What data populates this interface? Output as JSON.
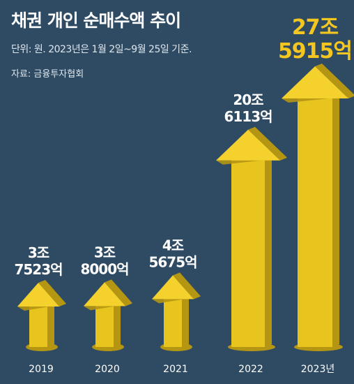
{
  "header": {
    "title": "채권 개인 순매수액 추이",
    "unit_note": "단위: 원. 2023년은 1월 2일~9월 25일 기준.",
    "source": "자료: 금융투자협회"
  },
  "colors": {
    "background": "#2f4b63",
    "arrow_top": "#f4d12c",
    "arrow_front": "#e8c41f",
    "arrow_side": "#b59613",
    "highlight_label": "#f4c620",
    "label": "#ffffff"
  },
  "chart_data": {
    "type": "bar",
    "title": "채권 개인 순매수액 추이",
    "unit": "원",
    "categories": [
      "2019",
      "2020",
      "2021",
      "2022",
      "2023년"
    ],
    "values": [
      37523,
      38000,
      45675,
      206113,
      275915
    ],
    "value_unit": "억원",
    "data_labels": [
      [
        "3조",
        "7523억"
      ],
      [
        "3조",
        "8000억"
      ],
      [
        "4조",
        "5675억"
      ],
      [
        "20조",
        "6113억"
      ],
      [
        "27조",
        "5915억"
      ]
    ],
    "highlight_index": 4,
    "xlabel": "",
    "ylabel": ""
  }
}
